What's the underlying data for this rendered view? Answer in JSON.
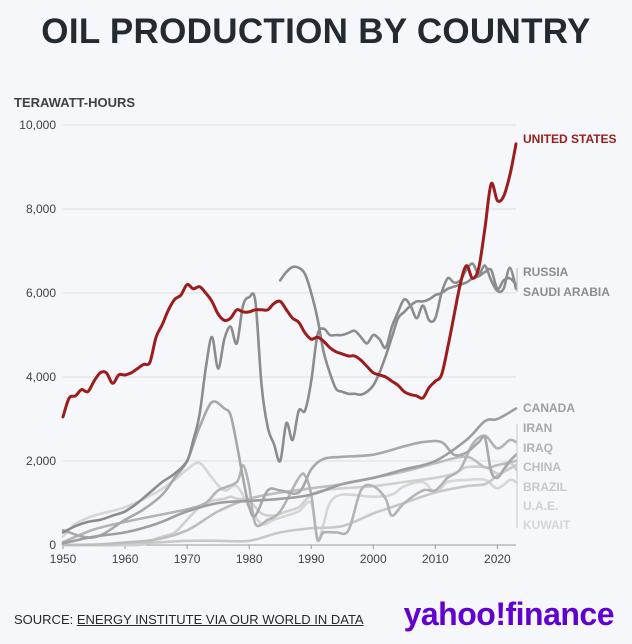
{
  "title": "OIL PRODUCTION BY COUNTRY",
  "footer": {
    "source_prefix": "SOURCE: ",
    "source_link": "ENERGY INSTITUTE VIA OUR WORLD IN DATA",
    "brand": "yahoo!finance"
  },
  "chart_data": {
    "type": "line",
    "ylabel": "TERAWATT-HOURS",
    "xlim": [
      1950,
      2023
    ],
    "ylim": [
      0,
      10000
    ],
    "x_ticks": [
      1950,
      1960,
      1970,
      1980,
      1990,
      2000,
      2010,
      2020
    ],
    "y_ticks": [
      0,
      2000,
      4000,
      6000,
      8000,
      10000
    ],
    "y_tick_labels": [
      "0",
      "2,000",
      "4,000",
      "6,000",
      "8,000",
      "10,000"
    ],
    "grid": "horizontal",
    "legend": "direct labels at right end of lines",
    "series": [
      {
        "name": "UNITED STATES",
        "color": "#9b1d1d",
        "x": [
          1950,
          1951,
          1952,
          1953,
          1954,
          1955,
          1956,
          1957,
          1958,
          1959,
          1960,
          1961,
          1962,
          1963,
          1964,
          1965,
          1966,
          1967,
          1968,
          1969,
          1970,
          1971,
          1972,
          1973,
          1974,
          1975,
          1976,
          1977,
          1978,
          1979,
          1980,
          1981,
          1982,
          1983,
          1984,
          1985,
          1986,
          1987,
          1988,
          1989,
          1990,
          1991,
          1992,
          1993,
          1994,
          1995,
          1996,
          1997,
          1998,
          1999,
          2000,
          2001,
          2002,
          2003,
          2004,
          2005,
          2006,
          2007,
          2008,
          2009,
          2010,
          2011,
          2012,
          2013,
          2014,
          2015,
          2016,
          2017,
          2018,
          2019,
          2020,
          2021,
          2022,
          2023
        ],
        "y": [
          3050,
          3500,
          3550,
          3700,
          3650,
          3900,
          4100,
          4100,
          3850,
          4050,
          4050,
          4100,
          4200,
          4300,
          4350,
          4950,
          5250,
          5600,
          5850,
          5950,
          6200,
          6100,
          6150,
          6000,
          5800,
          5500,
          5350,
          5400,
          5600,
          5550,
          5550,
          5600,
          5600,
          5600,
          5750,
          5800,
          5600,
          5400,
          5300,
          5050,
          4900,
          4950,
          4850,
          4700,
          4600,
          4550,
          4500,
          4500,
          4400,
          4250,
          4100,
          4050,
          4000,
          3900,
          3800,
          3650,
          3580,
          3550,
          3500,
          3750,
          3900,
          4050,
          4700,
          5450,
          6200,
          6650,
          6350,
          6600,
          7550,
          8600,
          8200,
          8300,
          8800,
          9550
        ]
      },
      {
        "name": "RUSSIA",
        "color": "#8c8c8c",
        "x": [
          1985,
          1986,
          1987,
          1988,
          1989,
          1990,
          1991,
          1992,
          1993,
          1994,
          1995,
          1996,
          1997,
          1998,
          1999,
          2000,
          2001,
          2002,
          2003,
          2004,
          2005,
          2006,
          2007,
          2008,
          2009,
          2010,
          2011,
          2012,
          2013,
          2014,
          2015,
          2016,
          2017,
          2018,
          2019,
          2020,
          2021,
          2022,
          2023
        ],
        "y": [
          6300,
          6500,
          6620,
          6600,
          6450,
          6000,
          5400,
          4600,
          4100,
          3720,
          3650,
          3600,
          3600,
          3580,
          3650,
          3800,
          4100,
          4500,
          4950,
          5400,
          5550,
          5700,
          5800,
          5800,
          5850,
          5950,
          6000,
          6100,
          6150,
          6200,
          6250,
          6350,
          6400,
          6500,
          6550,
          6100,
          6300,
          6350,
          6200
        ]
      },
      {
        "name": "SAUDI ARABIA",
        "color": "#8c8c8c",
        "x": [
          1950,
          1952,
          1954,
          1956,
          1958,
          1960,
          1962,
          1964,
          1966,
          1968,
          1970,
          1971,
          1972,
          1973,
          1974,
          1975,
          1976,
          1977,
          1978,
          1979,
          1980,
          1981,
          1982,
          1983,
          1984,
          1985,
          1986,
          1987,
          1988,
          1989,
          1990,
          1991,
          1992,
          1993,
          1994,
          1995,
          1996,
          1997,
          1998,
          1999,
          2000,
          2001,
          2002,
          2003,
          2004,
          2005,
          2006,
          2007,
          2008,
          2009,
          2010,
          2011,
          2012,
          2013,
          2014,
          2015,
          2016,
          2017,
          2018,
          2019,
          2020,
          2021,
          2022,
          2023
        ],
        "y": [
          300,
          450,
          550,
          600,
          700,
          800,
          1000,
          1250,
          1500,
          1700,
          2000,
          2500,
          3100,
          4200,
          4950,
          4200,
          4900,
          5200,
          4800,
          5700,
          5900,
          5800,
          3800,
          2800,
          2400,
          2000,
          2900,
          2500,
          3200,
          3200,
          3900,
          5000,
          5150,
          5000,
          5000,
          5000,
          5050,
          5100,
          4950,
          4800,
          5000,
          4900,
          4700,
          5200,
          5550,
          5850,
          5700,
          5400,
          5700,
          5350,
          5400,
          6000,
          6350,
          6250,
          6300,
          6550,
          6700,
          6450,
          6650,
          6300,
          6050,
          6100,
          6600,
          6100
        ]
      },
      {
        "name": "CANADA",
        "color": "#9e9e9e",
        "x": [
          1950,
          1955,
          1960,
          1965,
          1970,
          1975,
          1980,
          1985,
          1990,
          1995,
          2000,
          2005,
          2010,
          2015,
          2018,
          2020,
          2023
        ],
        "y": [
          40,
          200,
          300,
          500,
          800,
          1000,
          1050,
          1100,
          1200,
          1450,
          1600,
          1800,
          2000,
          2500,
          2950,
          3000,
          3250
        ]
      },
      {
        "name": "IRAN",
        "color": "#a8a8a8",
        "x": [
          1950,
          1955,
          1960,
          1963,
          1966,
          1968,
          1970,
          1972,
          1974,
          1976,
          1977,
          1978,
          1979,
          1980,
          1981,
          1983,
          1985,
          1988,
          1990,
          1992,
          1995,
          2000,
          2005,
          2008,
          2011,
          2013,
          2015,
          2017,
          2018,
          2019,
          2020,
          2021,
          2022,
          2023
        ],
        "y": [
          350,
          180,
          600,
          850,
          1200,
          1600,
          2000,
          2800,
          3400,
          3250,
          3100,
          2400,
          1600,
          900,
          700,
          1300,
          1300,
          1250,
          1800,
          2050,
          2100,
          2150,
          2350,
          2450,
          2450,
          2150,
          2200,
          2450,
          2550,
          1750,
          1600,
          1800,
          2000,
          2150
        ]
      },
      {
        "name": "IRAQ",
        "color": "#b3b3b3",
        "x": [
          1950,
          1955,
          1960,
          1965,
          1970,
          1973,
          1975,
          1978,
          1979,
          1980,
          1981,
          1983,
          1985,
          1988,
          1989,
          1990,
          1991,
          1992,
          1994,
          1996,
          1998,
          2000,
          2002,
          2003,
          2005,
          2008,
          2010,
          2012,
          2014,
          2016,
          2018,
          2020,
          2022,
          2023
        ],
        "y": [
          70,
          370,
          550,
          700,
          850,
          1000,
          1300,
          1500,
          1900,
          1400,
          500,
          600,
          800,
          1600,
          1650,
          1200,
          150,
          300,
          300,
          350,
          1300,
          1400,
          1100,
          700,
          1000,
          1300,
          1300,
          1600,
          1800,
          2400,
          2600,
          2300,
          2500,
          2450
        ]
      },
      {
        "name": "CHINA",
        "color": "#bdbdbd",
        "x": [
          1950,
          1955,
          1960,
          1965,
          1970,
          1975,
          1980,
          1985,
          1990,
          1995,
          2000,
          2005,
          2010,
          2015,
          2018,
          2020,
          2023
        ],
        "y": [
          0,
          10,
          60,
          130,
          350,
          800,
          1100,
          1250,
          1350,
          1450,
          1600,
          1750,
          1950,
          2100,
          1850,
          1900,
          2000
        ]
      },
      {
        "name": "BRAZIL",
        "color": "#c8c8c8",
        "x": [
          1950,
          1955,
          1960,
          1965,
          1970,
          1975,
          1980,
          1985,
          1990,
          1995,
          2000,
          2005,
          2010,
          2015,
          2018,
          2020,
          2023
        ],
        "y": [
          0,
          5,
          40,
          60,
          100,
          100,
          100,
          300,
          400,
          450,
          750,
          1000,
          1250,
          1400,
          1450,
          1650,
          1900
        ]
      },
      {
        "name": "U.A.E.",
        "color": "#d0d0d0",
        "x": [
          1950,
          1962,
          1964,
          1966,
          1968,
          1970,
          1972,
          1974,
          1976,
          1977,
          1978,
          1980,
          1982,
          1984,
          1986,
          1988,
          1990,
          1992,
          1995,
          2000,
          2005,
          2010,
          2013,
          2015,
          2018,
          2020,
          2021,
          2022,
          2023
        ],
        "y": [
          0,
          0,
          100,
          200,
          300,
          600,
          900,
          1050,
          1100,
          1150,
          1100,
          1050,
          750,
          700,
          800,
          900,
          1200,
          1300,
          1350,
          1400,
          1500,
          1600,
          1700,
          1850,
          1850,
          1700,
          1750,
          1950,
          1800
        ]
      },
      {
        "name": "KUWAIT",
        "color": "#d6d6d6",
        "x": [
          1950,
          1952,
          1955,
          1960,
          1965,
          1968,
          1970,
          1972,
          1974,
          1976,
          1978,
          1980,
          1982,
          1984,
          1986,
          1988,
          1990,
          1991,
          1992,
          1993,
          1995,
          2000,
          2003,
          2005,
          2008,
          2010,
          2012,
          2015,
          2018,
          2020,
          2022,
          2023
        ],
        "y": [
          200,
          500,
          700,
          900,
          1250,
          1550,
          1800,
          1950,
          1600,
          1300,
          1400,
          900,
          500,
          600,
          700,
          800,
          1000,
          100,
          500,
          1000,
          1200,
          1150,
          1200,
          1400,
          1500,
          1250,
          1500,
          1550,
          1550,
          1350,
          1550,
          1500
        ]
      }
    ]
  }
}
